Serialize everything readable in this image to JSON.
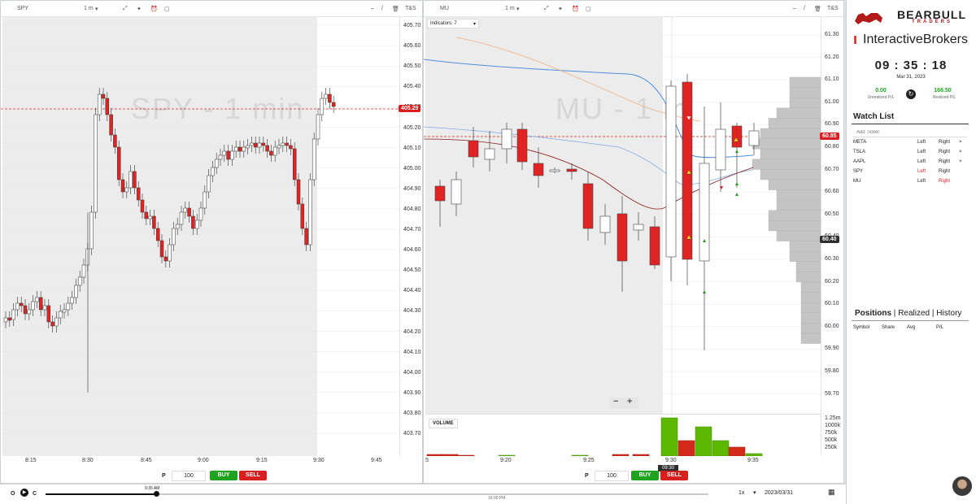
{
  "left_chart": {
    "symbol": "SPY",
    "interval": "1 m",
    "ts_label": "T&S",
    "watermark": "SPY - 1 min",
    "current_price": "405.29",
    "y_ticks": [
      "405.70",
      "405.60",
      "405.50",
      "405.40",
      "405.30",
      "405.20",
      "405.10",
      "405.00",
      "404.90",
      "404.80",
      "404.70",
      "404.60",
      "404.50",
      "404.40",
      "404.30",
      "404.20",
      "404.10",
      "404.00",
      "403.90",
      "403.80",
      "403.70"
    ],
    "x_ticks": [
      "8:15",
      "8:30",
      "8:45",
      "9:00",
      "9:15",
      "9:30",
      "9:45"
    ],
    "order": {
      "p_label": "P",
      "qty": "100",
      "buy": "BUY",
      "sell": "SELL"
    }
  },
  "mid_chart": {
    "symbol": "MU",
    "interval": "1 m",
    "ts_label": "T&S",
    "indicators_label": "Indicators: 7",
    "watermark": "MU - 1 m",
    "current_price": "60.85",
    "last_price": "60.40",
    "y_ticks": [
      "61.30",
      "61.20",
      "61.10",
      "61.00",
      "60.90",
      "60.80",
      "60.70",
      "60.60",
      "60.50",
      "60.40",
      "60.30",
      "60.20",
      "60.10",
      "60.00",
      "59.90",
      "59.80",
      "59.70"
    ],
    "x_ticks": [
      "5",
      "9:20",
      "9:25",
      "9:30",
      "9:35"
    ],
    "crosshair_time": "09:30",
    "volume_label": "VOLUME",
    "volume_ticks": [
      "1.25m",
      "1000k",
      "750k",
      "500k",
      "250k"
    ],
    "zoom_out": "−",
    "zoom_in": "+",
    "order": {
      "p_label": "P",
      "qty": "100",
      "buy": "BUY",
      "sell": "SELL"
    }
  },
  "right_panel": {
    "brand_top": "BEARBULL",
    "brand_sub": "TRADERS",
    "broker": "InteractiveBrokers",
    "clock": "09 : 35 : 18",
    "date": "Mar 31, 2023",
    "unrealized_value": "0.00",
    "unrealized_label": "Unrealized P/L",
    "realized_value": "166.50",
    "realized_label": "Realized P/L",
    "watchlist_title": "Watch List",
    "add_ticker_placeholder": "Add Ticker",
    "watchlist": [
      {
        "symbol": "META",
        "left": "Left",
        "right": "Right",
        "x": "×"
      },
      {
        "symbol": "TSLA",
        "left": "Left",
        "right": "Right",
        "x": "×"
      },
      {
        "symbol": "AAPL",
        "left": "Left",
        "right": "Right",
        "x": "×"
      },
      {
        "symbol": "SPY",
        "left": "Left",
        "right": "Right",
        "x": ""
      },
      {
        "symbol": "MU",
        "left": "Left",
        "right": "Right",
        "x": ""
      }
    ],
    "tabs": {
      "positions": "Positions",
      "sep1": "|",
      "realized": "Realized",
      "sep2": "|",
      "history": "History"
    },
    "columns": [
      "Symbol",
      "Share",
      "Avg",
      "P/L"
    ]
  },
  "bottom_bar": {
    "o_label": "O",
    "c_label": "C",
    "scrub_time": "9:35 AM",
    "end_time": "16:00 PM",
    "speed": "1x",
    "date": "2023/03/31"
  },
  "colors": {
    "up": "#ffffff",
    "down": "#e02424",
    "accent_red": "#d71f1f",
    "buy": "#1fa31f",
    "vol_green": "#5cb800"
  }
}
